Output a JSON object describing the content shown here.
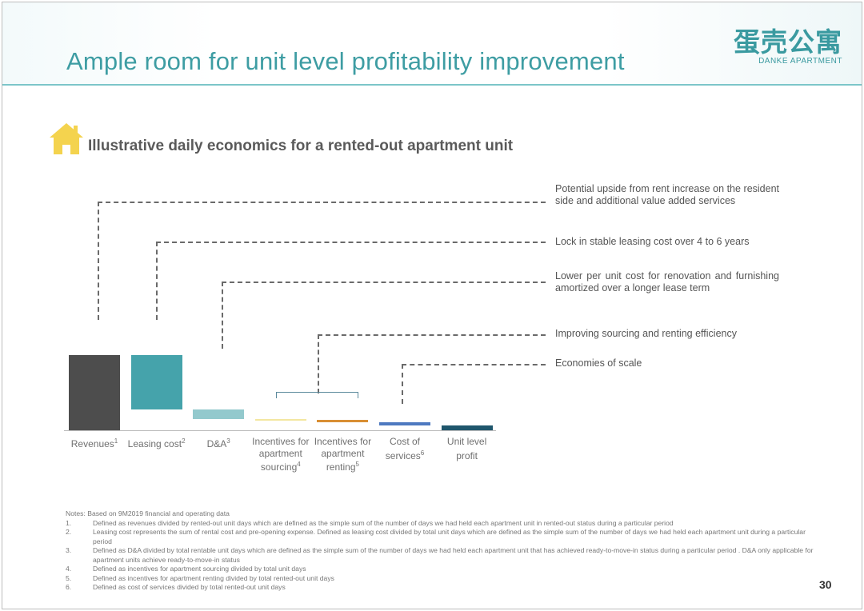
{
  "header": {
    "title": "Ample room for unit level profitability improvement",
    "logo_cn": "蛋壳公寓",
    "logo_en": "DANKE APARTMENT"
  },
  "subtitle": "Illustrative daily economics for a rented-out apartment unit",
  "annotations": [
    "Potential upside from rent increase on the resident side and additional value added services",
    "Lock in stable leasing cost over 4 to 6 years",
    "Lower per unit cost for renovation and furnishing amortized over a longer lease term",
    "Improving sourcing and renting efficiency",
    "Economies of scale"
  ],
  "chart_data": {
    "type": "bar",
    "subtype": "waterfall",
    "categories": [
      {
        "label": "Revenues",
        "sup": "1"
      },
      {
        "label": "Leasing cost",
        "sup": "2"
      },
      {
        "label": "D&A",
        "sup": "3"
      },
      {
        "label": "Incentives for apartment sourcing",
        "sup": "4"
      },
      {
        "label": "Incentives for apartment renting",
        "sup": "5"
      },
      {
        "label": "Cost of services",
        "sup": "6"
      },
      {
        "label": "Unit level profit",
        "sup": ""
      }
    ],
    "values": [
      100,
      -72,
      -13,
      -1,
      -3,
      -5,
      6
    ],
    "colors": [
      "#4d4d4d",
      "#45a3ab",
      "#93c9cd",
      "#f3e7a0",
      "#d98f34",
      "#4e79c0",
      "#1f566c"
    ],
    "axis_values_shown": false,
    "grid": false
  },
  "notes": {
    "header": "Notes: Based on 9M2019 financial and operating data",
    "items": [
      {
        "n": "1.",
        "text": "Defined as revenues divided by rented-out unit days which are defined as the simple sum of the number of days we had held each apartment unit in rented-out status during a particular period"
      },
      {
        "n": "2.",
        "text": "Leasing cost represents the sum of rental cost and pre-opening expense. Defined as leasing cost divided by total unit days which are defined as the simple sum of the number of days we had held each apartment unit during a particular period"
      },
      {
        "n": "3.",
        "text": "Defined as D&A divided by total rentable unit days which are defined as the simple sum of the number of days we had held each apartment unit that has achieved ready-to-move-in status during a particular period . D&A only applicable for apartment units achieve ready-to-move-in status"
      },
      {
        "n": "4.",
        "text": "Defined as incentives for apartment sourcing divided by total unit days"
      },
      {
        "n": "5.",
        "text": "Defined as incentives for apartment renting divided by total rented-out unit days"
      },
      {
        "n": "6.",
        "text": "Defined as cost of services divided by total rented-out unit days"
      }
    ]
  },
  "page_number": "30"
}
